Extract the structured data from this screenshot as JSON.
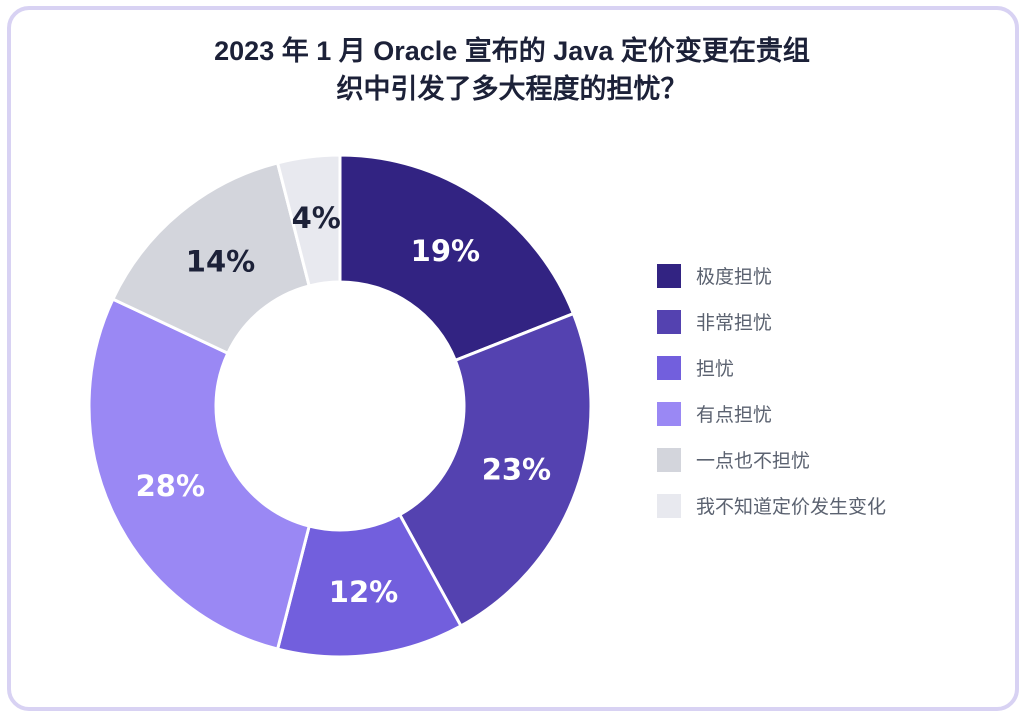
{
  "title": {
    "line1": "2023 年 1 月 Oracle 宣布的 Java 定价变更在贵组",
    "line2": "织中引发了多大程度的担忧？"
  },
  "chart_data": {
    "type": "pie",
    "style": "donut",
    "title": "2023 年 1 月 Oracle 宣布的 Java 定价变更在贵组织中引发了多大程度的担忧？",
    "legend_position": "right",
    "slices": [
      {
        "label": "极度担忧",
        "value": 19,
        "display": "19%",
        "color": "#322382",
        "text_color": "#ffffff"
      },
      {
        "label": "非常担忧",
        "value": 23,
        "display": "23%",
        "color": "#5442b0",
        "text_color": "#ffffff"
      },
      {
        "label": "担忧",
        "value": 12,
        "display": "12%",
        "color": "#725fdd",
        "text_color": "#ffffff"
      },
      {
        "label": "有点担忧",
        "value": 28,
        "display": "28%",
        "color": "#9a88f4",
        "text_color": "#ffffff"
      },
      {
        "label": "一点也不担忧",
        "value": 14,
        "display": "14%",
        "color": "#d3d5dc",
        "text_color": "#1c2138"
      },
      {
        "label": "我不知道定价发生变化",
        "value": 4,
        "display": "4%",
        "color": "#e8e9ef",
        "text_color": "#1c2138"
      }
    ]
  }
}
